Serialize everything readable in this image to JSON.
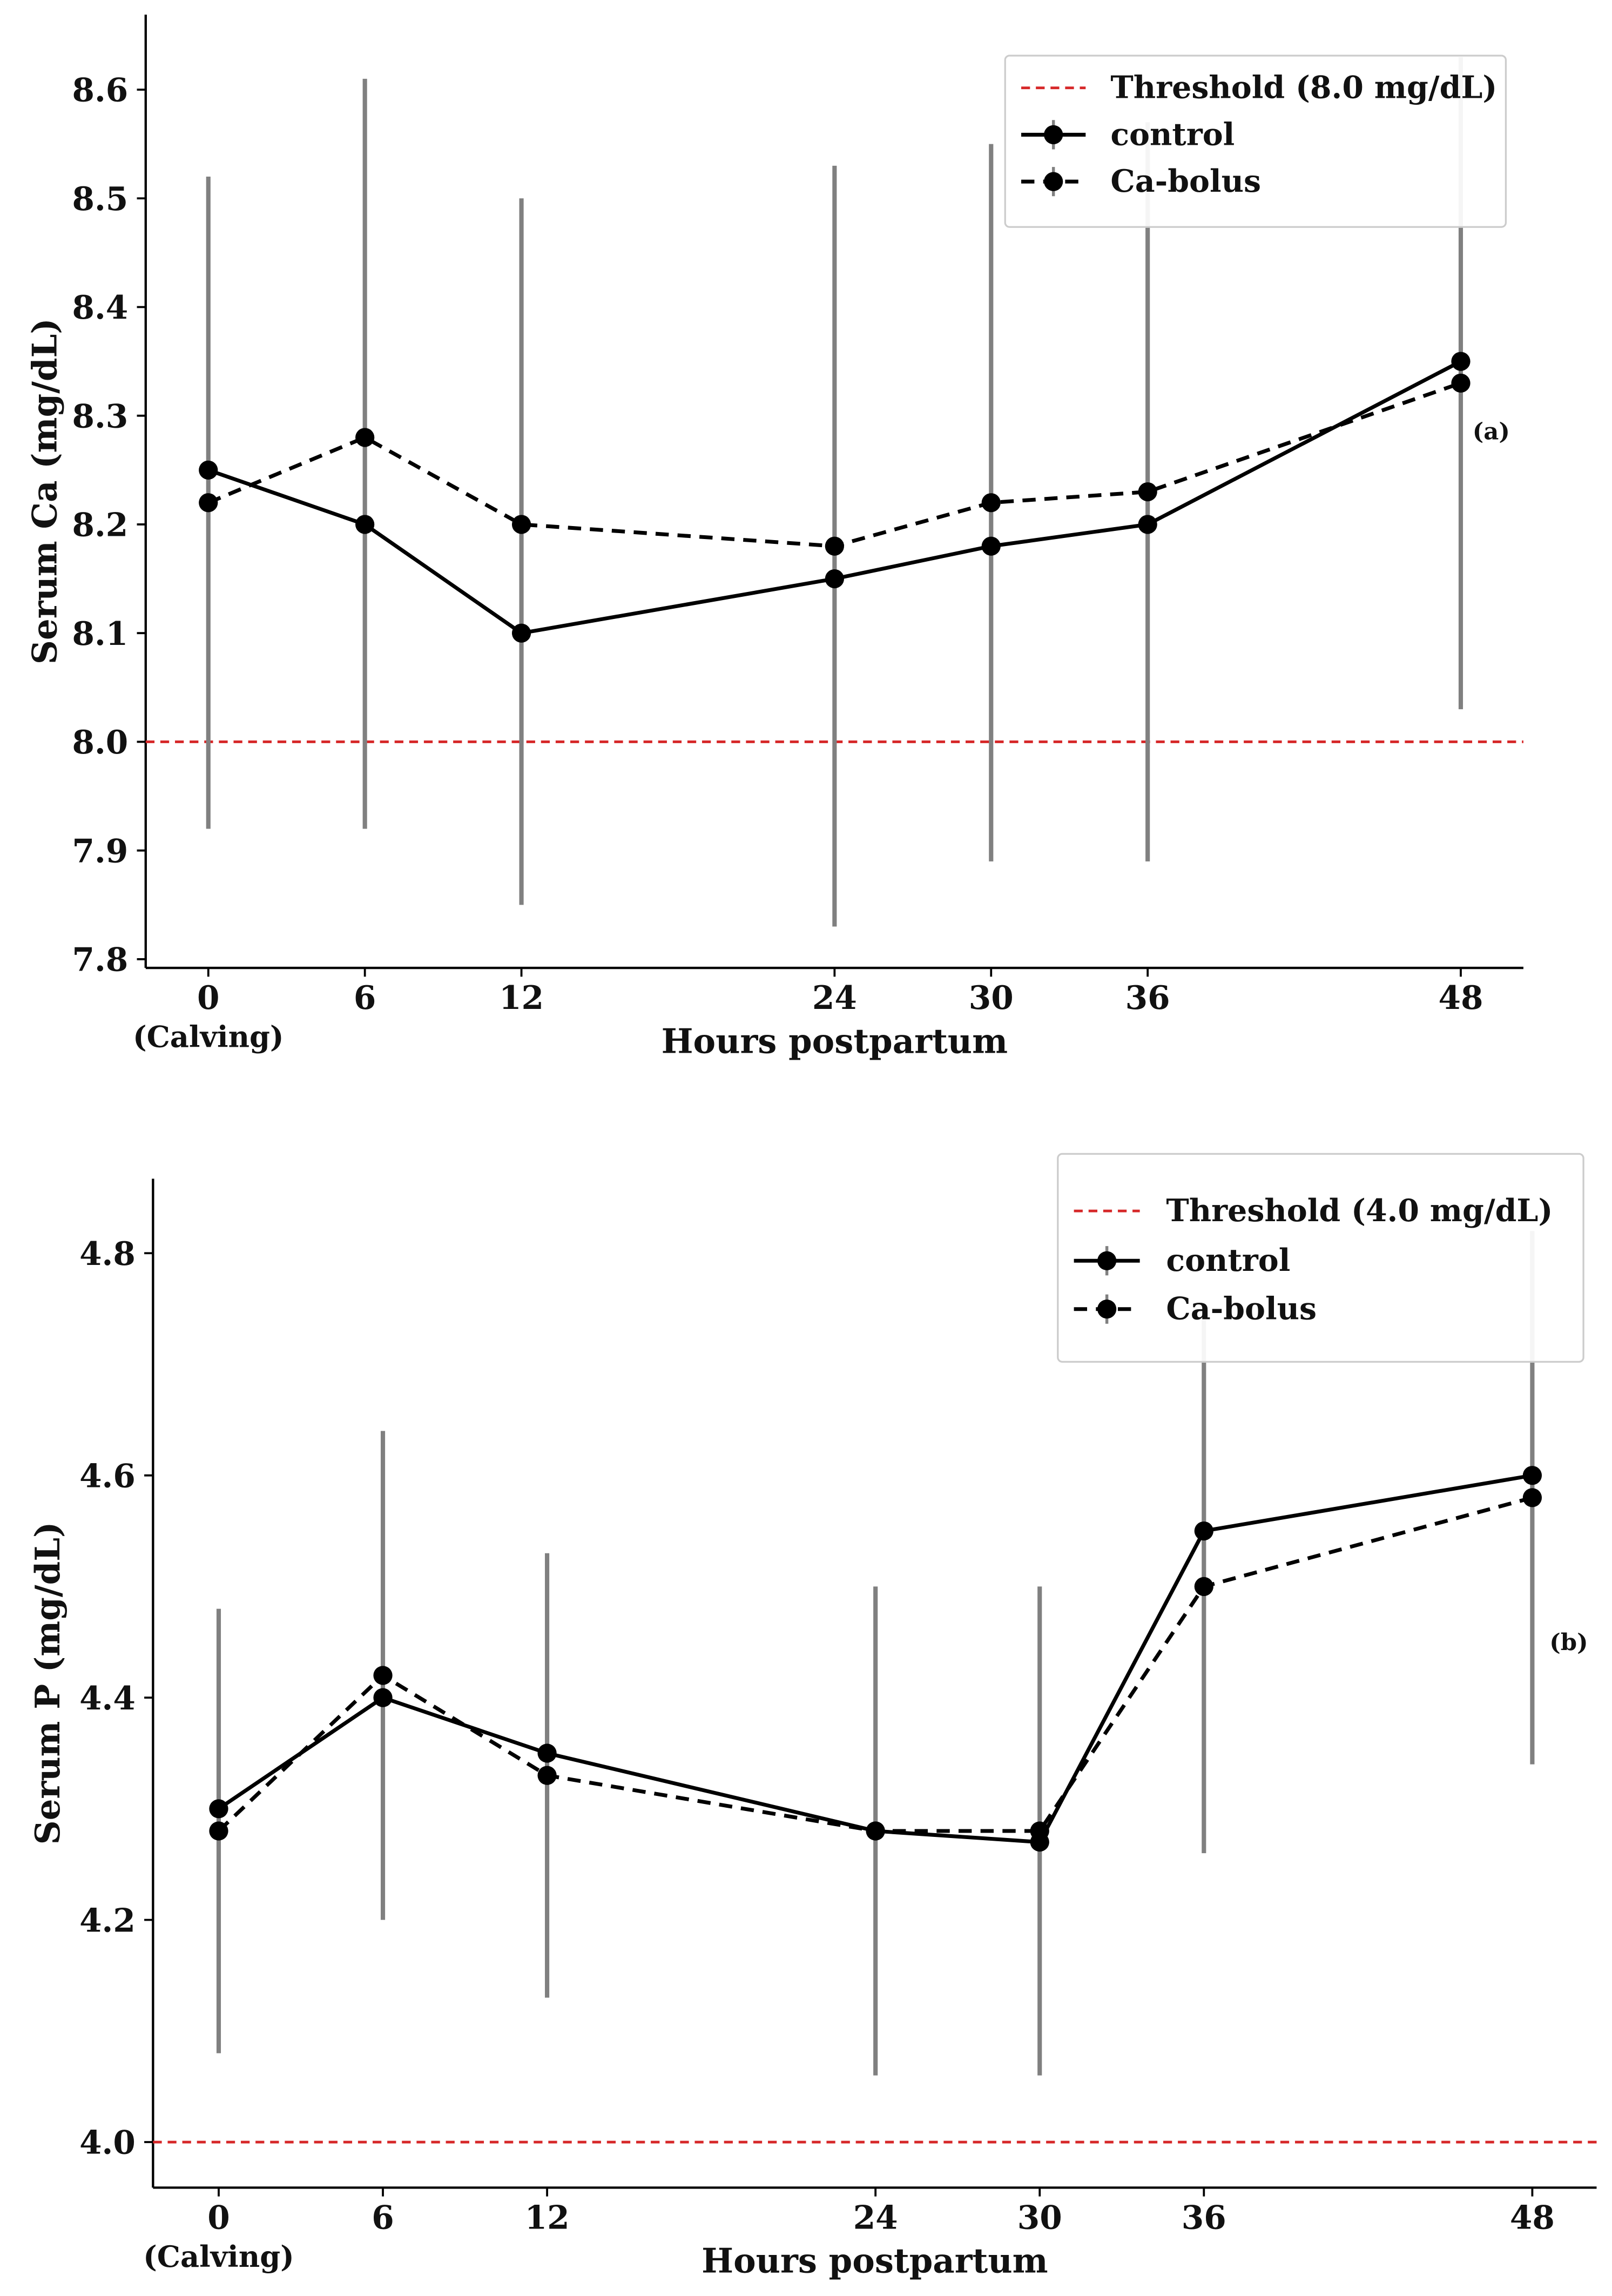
{
  "chart_data": [
    {
      "type": "line",
      "panel_label": "(a)",
      "ylabel": "Serum Ca (mg/dL)",
      "xlabel": "Hours postpartum",
      "x": [
        0,
        6,
        12,
        24,
        30,
        36,
        48
      ],
      "xtick_labels": [
        "0",
        "6",
        "12",
        "24",
        "30",
        "36",
        "48"
      ],
      "xtick_sublabel": "(Calving)",
      "yticks": [
        7.8,
        7.9,
        8.0,
        8.1,
        8.2,
        8.3,
        8.4,
        8.5,
        8.6
      ],
      "ytick_labels": [
        "7.8",
        "7.9",
        "8.0",
        "8.1",
        "8.2",
        "8.3",
        "8.4",
        "8.5",
        "8.6"
      ],
      "xlim": [
        -2.4,
        50.4
      ],
      "ylim": [
        7.792,
        8.669
      ],
      "threshold": {
        "value": 8.0,
        "label": "Threshold (8.0 mg/dL)",
        "color": "#d62728"
      },
      "series": [
        {
          "name": "control",
          "style": "solid",
          "values": [
            8.25,
            8.2,
            8.1,
            8.15,
            8.18,
            8.2,
            8.35
          ]
        },
        {
          "name": "Ca-bolus",
          "style": "dashed",
          "values": [
            8.22,
            8.28,
            8.2,
            8.18,
            8.22,
            8.23,
            8.33
          ]
        }
      ],
      "error_bars": {
        "low": [
          7.92,
          7.92,
          7.85,
          7.83,
          7.89,
          7.89,
          8.03
        ],
        "high": [
          8.52,
          8.61,
          8.5,
          8.53,
          8.55,
          8.57,
          8.63
        ],
        "color": "#808080"
      },
      "legend_position": "top-right",
      "grid": false
    },
    {
      "type": "line",
      "panel_label": "(b)",
      "ylabel": "Serum P (mg/dL)",
      "xlabel": "Hours postpartum",
      "x": [
        0,
        6,
        12,
        24,
        30,
        36,
        48
      ],
      "xtick_labels": [
        "0",
        "6",
        "12",
        "24",
        "30",
        "36",
        "48"
      ],
      "xtick_sublabel": "(Calving)",
      "yticks": [
        4.0,
        4.2,
        4.4,
        4.6,
        4.8
      ],
      "ytick_labels": [
        "4.0",
        "4.2",
        "4.4",
        "4.6",
        "4.8"
      ],
      "xlim": [
        -2.4,
        50.35
      ],
      "ylim": [
        3.959,
        4.867
      ],
      "threshold": {
        "value": 4.0,
        "label": "Threshold (4.0 mg/dL)",
        "color": "#d62728"
      },
      "series": [
        {
          "name": "control",
          "style": "solid",
          "values": [
            4.3,
            4.4,
            4.35,
            4.28,
            4.27,
            4.55,
            4.6
          ]
        },
        {
          "name": "Ca-bolus",
          "style": "dashed",
          "values": [
            4.28,
            4.42,
            4.33,
            4.28,
            4.28,
            4.5,
            4.58
          ]
        }
      ],
      "error_bars": {
        "low": [
          4.08,
          4.2,
          4.13,
          4.06,
          4.06,
          4.26,
          4.34
        ],
        "high": [
          4.48,
          4.64,
          4.53,
          4.5,
          4.5,
          4.74,
          4.82
        ],
        "color": "#808080"
      },
      "legend_position": "top-right",
      "grid": false
    }
  ]
}
